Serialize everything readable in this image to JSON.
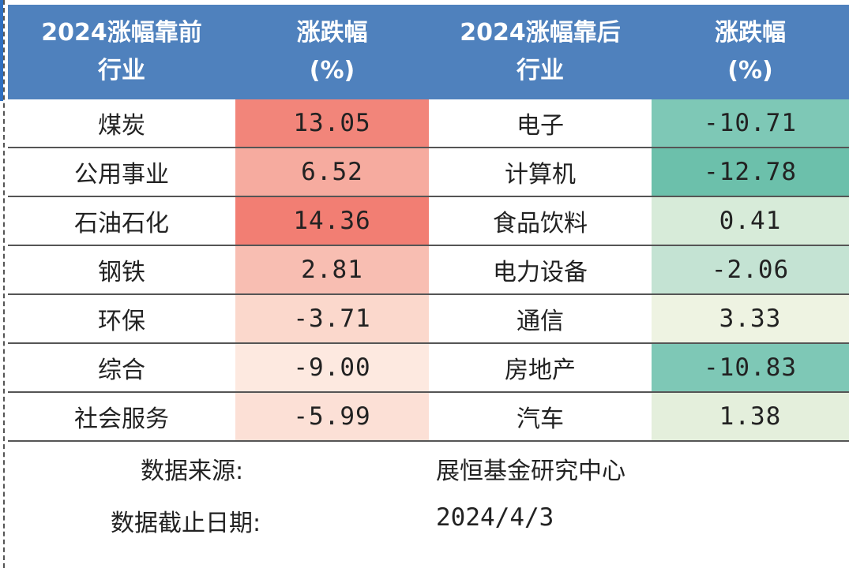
{
  "table": {
    "headers": [
      [
        "2024涨幅靠前",
        "行业"
      ],
      [
        "涨跌幅",
        "(%)"
      ],
      [
        "2024涨幅靠后",
        "行业"
      ],
      [
        "涨跌幅",
        "(%)"
      ]
    ],
    "rows": [
      {
        "top_industry": "煤炭",
        "top_change": "13.05",
        "top_color": "#f2857a",
        "bottom_industry": "电子",
        "bottom_change": "-10.71",
        "bottom_color": "#7ec8b6"
      },
      {
        "top_industry": "公用事业",
        "top_change": "6.52",
        "top_color": "#f6ab9f",
        "bottom_industry": "计算机",
        "bottom_change": "-12.78",
        "bottom_color": "#6cc0ab"
      },
      {
        "top_industry": "石油石化",
        "top_change": "14.36",
        "top_color": "#f27e73",
        "bottom_industry": "食品饮料",
        "bottom_change": "0.41",
        "bottom_color": "#d7ebd9"
      },
      {
        "top_industry": "钢铁",
        "top_change": "2.81",
        "top_color": "#f8beb2",
        "bottom_industry": "电力设备",
        "bottom_change": "-2.06",
        "bottom_color": "#c4e3d3"
      },
      {
        "top_industry": "环保",
        "top_change": "-3.71",
        "top_color": "#fbd8cc",
        "bottom_industry": "通信",
        "bottom_change": "3.33",
        "bottom_color": "#eef3e2"
      },
      {
        "top_industry": "综合",
        "top_change": "-9.00",
        "top_color": "#fde9e0",
        "bottom_industry": "房地产",
        "bottom_change": "-10.83",
        "bottom_color": "#7ec8b6"
      },
      {
        "top_industry": "社会服务",
        "top_change": "-5.99",
        "top_color": "#fce0d6",
        "bottom_industry": "汽车",
        "bottom_change": "1.38",
        "bottom_color": "#e4efdc"
      }
    ]
  },
  "footer": {
    "source_label": "数据来源:",
    "source_value": "展恒基金研究中心",
    "date_label": "数据截止日期:",
    "date_value": "2024/4/3"
  },
  "colors": {
    "header_bg": "#4f81bd",
    "header_text": "#ffffff",
    "row_border": "#555555"
  }
}
